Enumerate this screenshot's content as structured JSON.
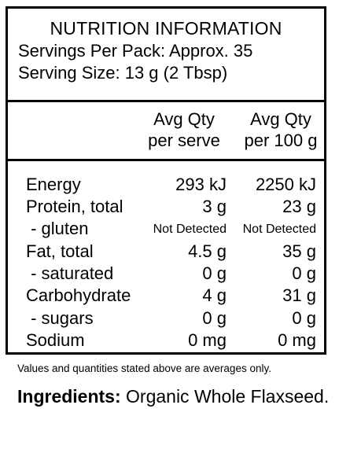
{
  "panel": {
    "title": "NUTRITION INFORMATION",
    "servings_per_pack": "Servings Per Pack: Approx. 35",
    "serving_size": "Serving Size: 13 g (2 Tbsp)"
  },
  "columns": {
    "per_serve": [
      "Avg Qty",
      "per serve"
    ],
    "per_100g": [
      "Avg Qty",
      "per 100 g"
    ]
  },
  "rows": [
    {
      "label": "Energy",
      "per_serve": "293 kJ",
      "per_100g": "2250 kJ"
    },
    {
      "label": "Protein, total",
      "per_serve": "3 g",
      "per_100g": "23 g"
    },
    {
      "label": " - gluten",
      "per_serve": "Not Detected",
      "per_100g": "Not Detected"
    },
    {
      "label": "Fat, total",
      "per_serve": "4.5 g",
      "per_100g": "35 g"
    },
    {
      "label": " - saturated",
      "per_serve": "0 g",
      "per_100g": "0 g"
    },
    {
      "label": "Carbohydrate",
      "per_serve": "4 g",
      "per_100g": "31 g"
    },
    {
      "label": " - sugars",
      "per_serve": "0 g",
      "per_100g": "0 g"
    },
    {
      "label": "Sodium",
      "per_serve": "0 mg",
      "per_100g": "0 mg"
    }
  ],
  "footnote": "Values and quantities stated above are averages only.",
  "ingredients": {
    "label": "Ingredients:",
    "text": " Organic Whole Flaxseed."
  }
}
